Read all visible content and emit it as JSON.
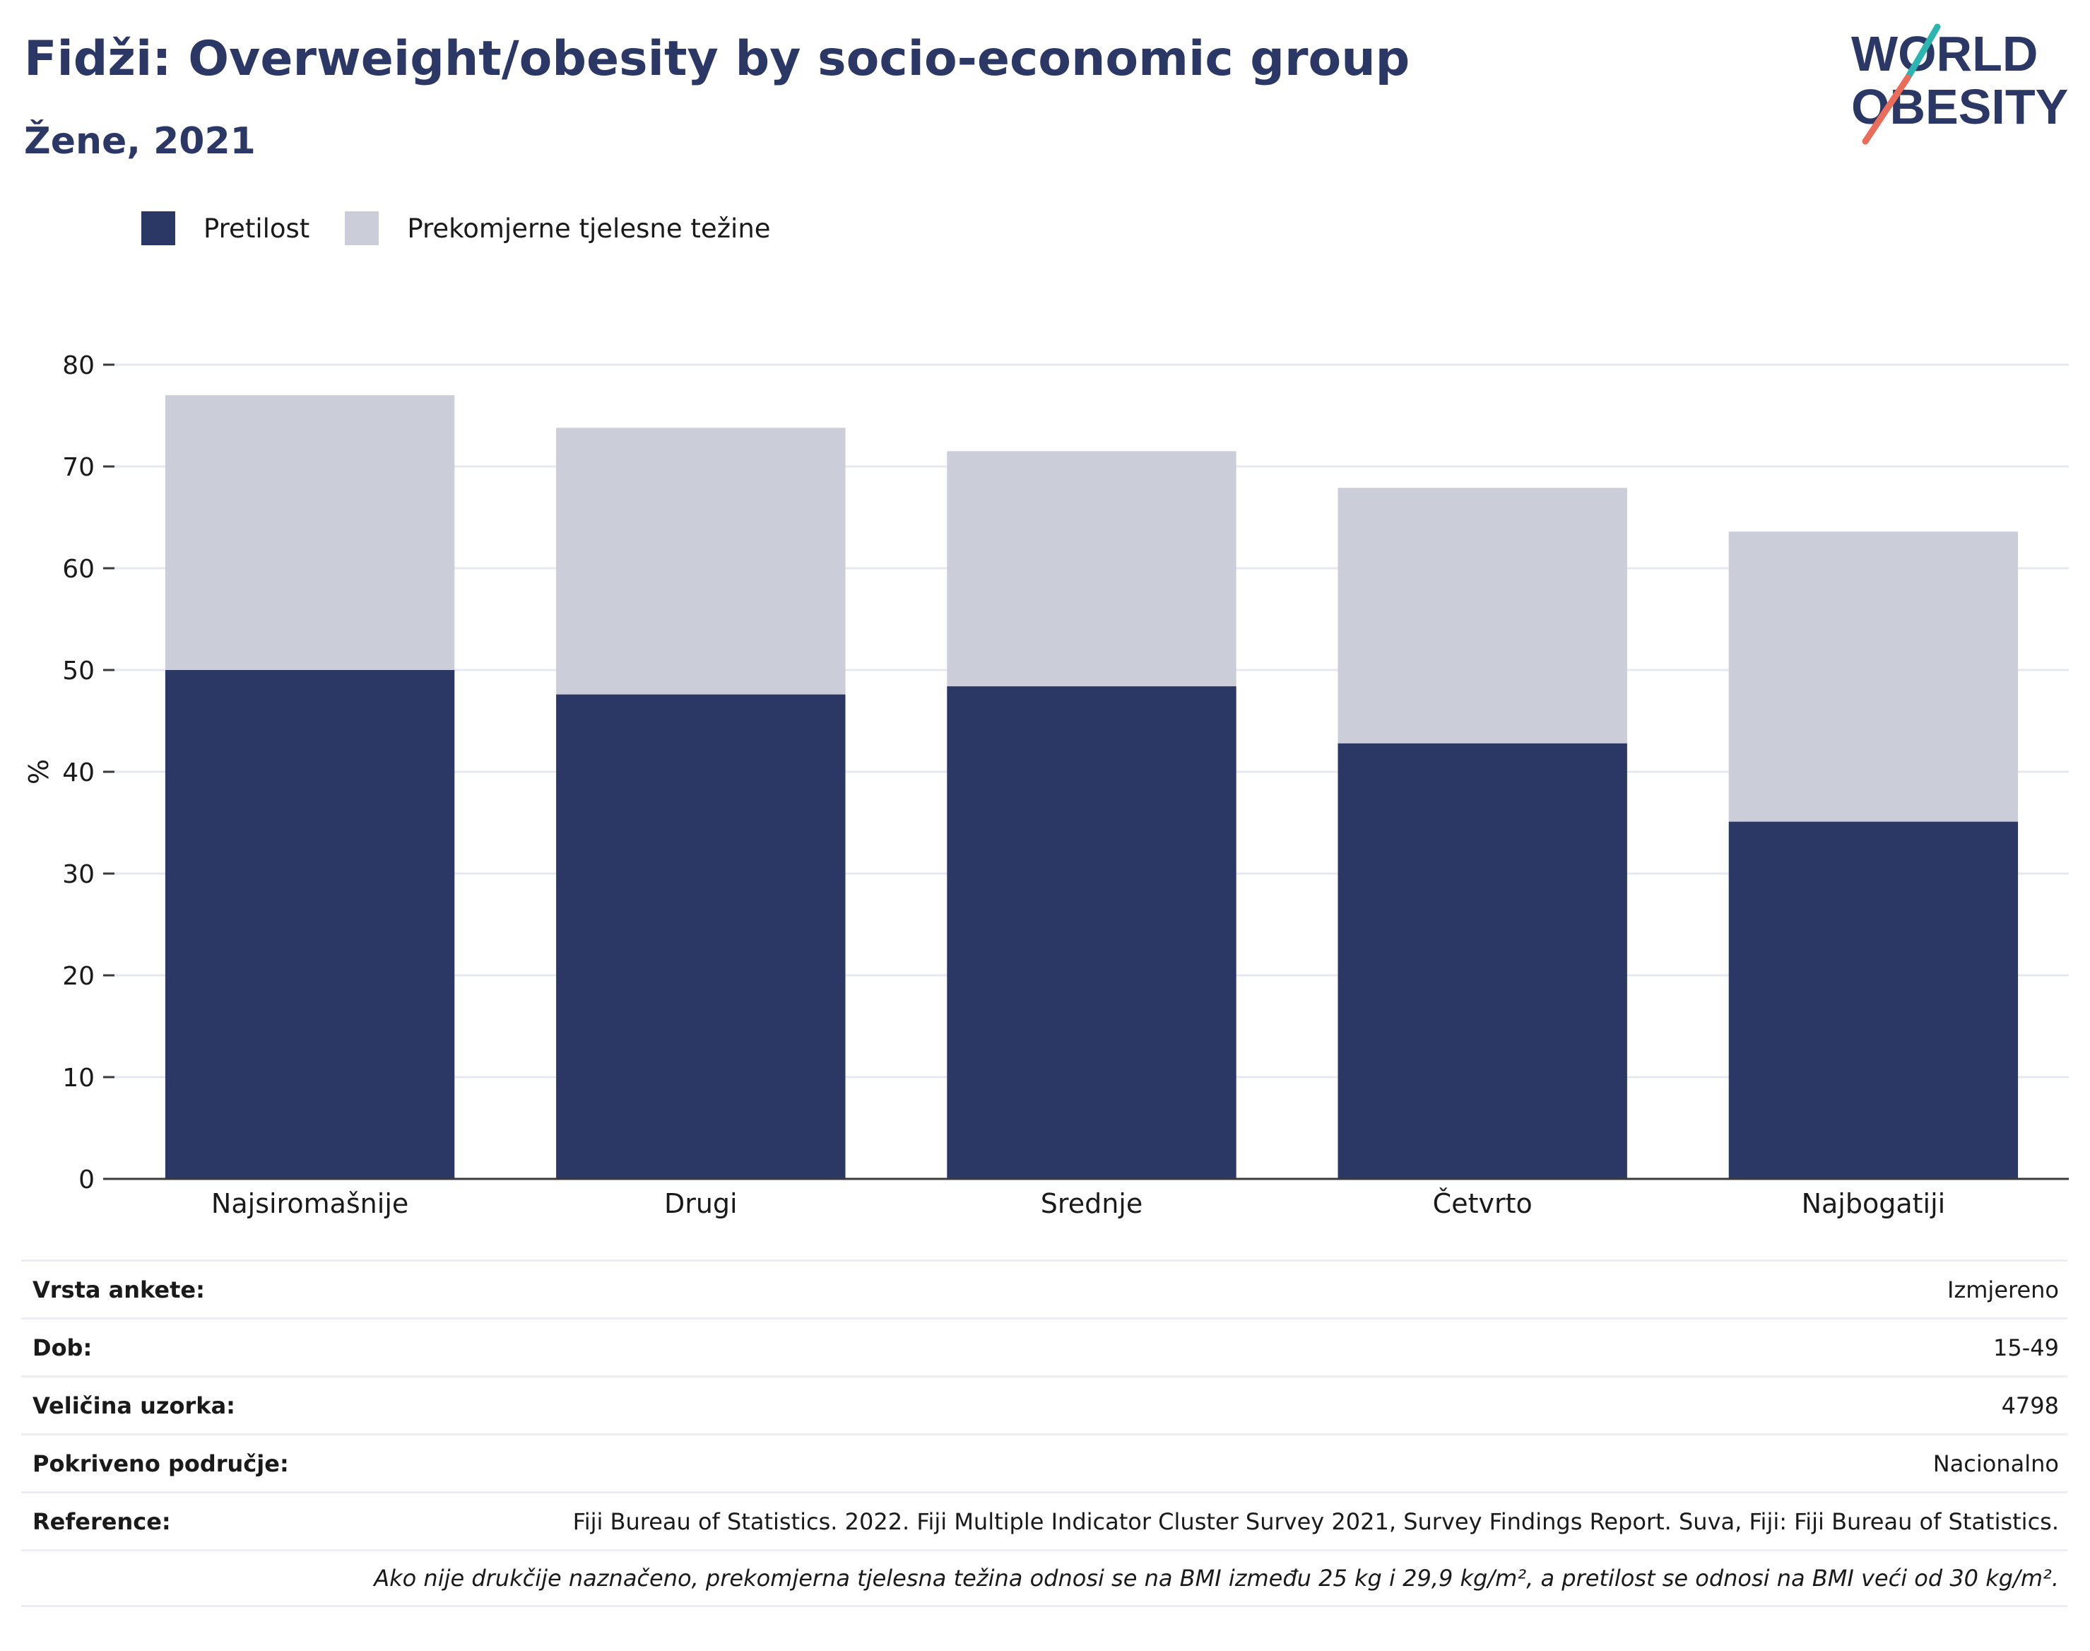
{
  "header": {
    "title": "Fidži: Overweight/obesity by socio-economic group",
    "subtitle": "Žene, 2021"
  },
  "logo": {
    "line1": "WORLD",
    "line2": "OBESITY"
  },
  "colors": {
    "title": "#2b3765",
    "obesity": "#2b3765",
    "overweight": "#cbcdd9",
    "grid": "#e6e8ef",
    "axis": "#3a3a3a",
    "logo_teal": "#2cb5b0",
    "logo_coral": "#ea6c5a"
  },
  "legend": {
    "items": [
      {
        "label": "Pretilost",
        "color": "#2b3765"
      },
      {
        "label": "Prekomjerne tjelesne težine",
        "color": "#cbcdd9"
      }
    ]
  },
  "chart_data": {
    "type": "bar",
    "stacked": true,
    "categories": [
      "Najsiromašnije",
      "Drugi",
      "Srednje",
      "Četvrto",
      "Najbogatiji"
    ],
    "series": [
      {
        "name": "Pretilost",
        "values": [
          50.0,
          47.6,
          48.4,
          42.8,
          35.1
        ]
      },
      {
        "name": "Prekomjerne tjelesne težine",
        "values": [
          27.0,
          26.2,
          23.1,
          25.1,
          28.5
        ]
      }
    ],
    "ylabel": "%",
    "ylim": [
      0,
      80
    ],
    "yticks": [
      0,
      10,
      20,
      30,
      40,
      50,
      60,
      70,
      80
    ],
    "grid": true,
    "legend_position": "top-left"
  },
  "meta": {
    "rows": [
      {
        "label": "Vrsta ankete:",
        "value": "Izmjereno"
      },
      {
        "label": "Dob:",
        "value": "15-49"
      },
      {
        "label": "Veličina uzorka:",
        "value": "4798"
      },
      {
        "label": "Pokriveno područje:",
        "value": "Nacionalno"
      },
      {
        "label": "Reference:",
        "value": "Fiji Bureau of Statistics. 2022. Fiji Multiple Indicator Cluster Survey 2021, Survey Findings Report. Suva, Fiji: Fiji Bureau of Statistics."
      }
    ],
    "note": "Ako nije drukčije naznačeno, prekomjerna tjelesna težina odnosi se na BMI između 25 kg i 29,9 kg/m², a pretilost se odnosi na BMI veći od 30 kg/m²."
  }
}
